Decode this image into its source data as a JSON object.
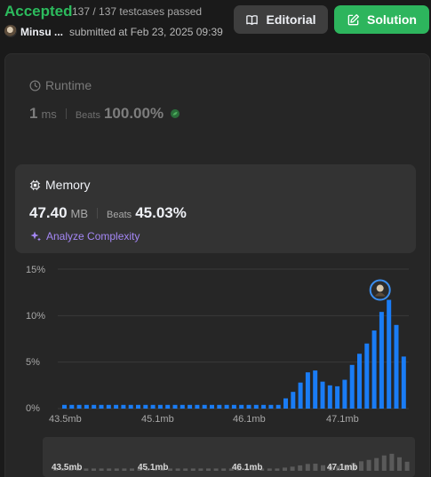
{
  "status": {
    "result": "Accepted",
    "testcases": "137 / 137 testcases passed",
    "user": "Minsu ...",
    "submitted": "submitted at Feb 23, 2025 09:39"
  },
  "buttons": {
    "editorial": "Editorial",
    "solution": "Solution"
  },
  "runtime": {
    "label": "Runtime",
    "value": "1",
    "unit": "ms",
    "beats_label": "Beats",
    "beats_value": "100.00%"
  },
  "memory": {
    "label": "Memory",
    "value": "47.40",
    "unit": "MB",
    "beats_label": "Beats",
    "beats_value": "45.03%",
    "analyze": "Analyze Complexity"
  },
  "colors": {
    "accepted": "#2cbb5d",
    "bar": "#1a7cf5",
    "bar_dim": "#5a5a5a",
    "analyze": "#a487f5"
  },
  "chart_data": {
    "type": "bar",
    "ylim": [
      0,
      15
    ],
    "yticks": [
      "0%",
      "5%",
      "10%",
      "15%"
    ],
    "xticks": [
      "43.5mb",
      "45.1mb",
      "46.1mb",
      "47.1mb"
    ],
    "values": [
      0.4,
      0.4,
      0.4,
      0.4,
      0.4,
      0.4,
      0.4,
      0.4,
      0.4,
      0.4,
      0.4,
      0.4,
      0.4,
      0.4,
      0.4,
      0.4,
      0.4,
      0.4,
      0.4,
      0.4,
      0.4,
      0.4,
      0.4,
      0.4,
      0.4,
      0.4,
      0.4,
      0.4,
      0.4,
      0.4,
      1.1,
      1.8,
      2.8,
      3.9,
      4.1,
      2.9,
      2.5,
      2.4,
      3.1,
      4.7,
      5.9,
      7.0,
      8.4,
      10.4,
      11.7,
      9.0,
      5.6
    ],
    "highlight_index": 44,
    "grid": true
  }
}
